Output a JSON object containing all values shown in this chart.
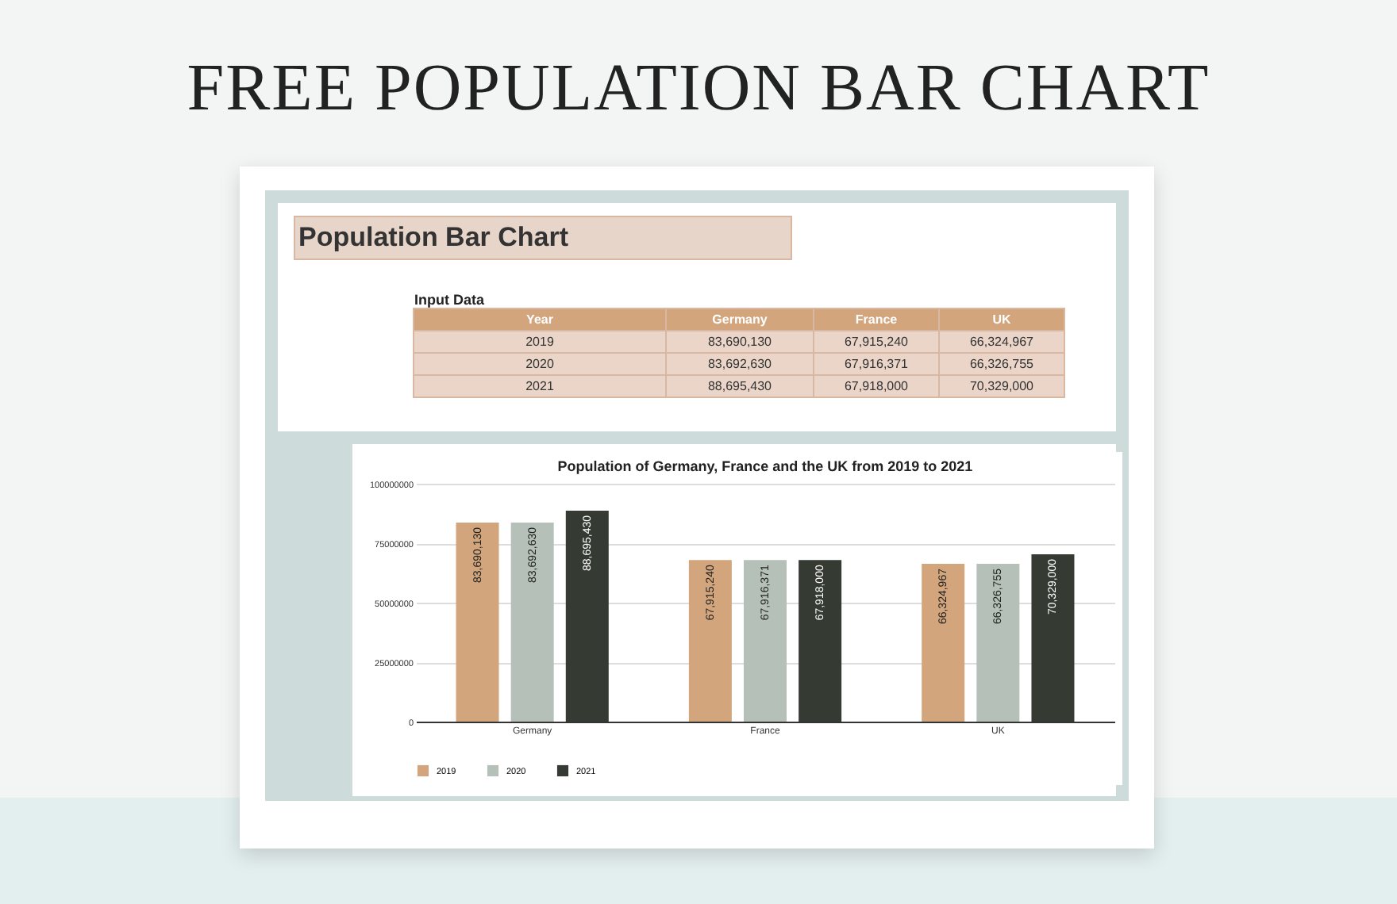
{
  "chart_data": {
    "type": "bar",
    "title": "Population of Germany, France and the UK from 2019 to 2021",
    "annotations": [
      "FREE POPULATION BAR CHART",
      "Population Bar Chart",
      "Input Data",
      "Year"
    ],
    "categories": [
      "Germany",
      "France",
      "UK"
    ],
    "series": [
      {
        "name": "2019",
        "color": "#d2a57c",
        "values": [
          83690130,
          67915240,
          66324967
        ],
        "value_labels": [
          "83,690,130",
          "67,915,240",
          "66,324,967"
        ]
      },
      {
        "name": "2020",
        "color": "#b5c1b8",
        "values": [
          83692630,
          67916371,
          66326755
        ],
        "value_labels": [
          "83,692,630",
          "67,916,371",
          "66,326,755"
        ]
      },
      {
        "name": "2021",
        "color": "#353a33",
        "values": [
          88695430,
          67918000,
          70329000
        ],
        "value_labels": [
          "88,695,430",
          "67,918,000",
          "70,329,000"
        ]
      }
    ],
    "ylim": [
      0,
      100000000
    ],
    "yticks": [
      0,
      25000000,
      50000000,
      75000000,
      100000000
    ],
    "grid": "y",
    "legend": "bottom",
    "data_labels": true
  }
}
